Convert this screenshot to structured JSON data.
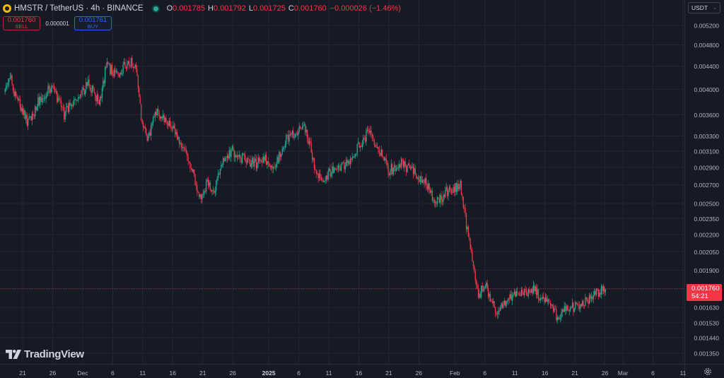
{
  "header": {
    "symbol": "HMSTR / TetherUS · 4h · BINANCE",
    "ohlc": [
      {
        "label": "O",
        "value": "0.001785"
      },
      {
        "label": "H",
        "value": "0.001792"
      },
      {
        "label": "L",
        "value": "0.001725"
      },
      {
        "label": "C",
        "value": "0.001760"
      }
    ],
    "change": "−0.000026 (−1.46%)"
  },
  "trade": {
    "sell_price": "0.001760",
    "sell_label": "SELL",
    "spread": "0.000001",
    "buy_price": "0.001761",
    "buy_label": "BUY"
  },
  "currency": "USDT",
  "price_tag": {
    "price": "0.001760",
    "countdown": "54:21"
  },
  "branding": "TradingView",
  "colors": {
    "up": "#22ab94",
    "down": "#f23645",
    "bg": "#161a25",
    "grid": "#232734",
    "axis_text": "#b2b5be"
  },
  "icons": [
    "tradingview-logo-icon",
    "gear-icon",
    "chevron-down-icon"
  ],
  "chart_data": {
    "type": "candlestick",
    "interval": "4h",
    "y_scale": "log",
    "ylim": [
      0.0013,
      0.0054
    ],
    "y_ticks": [
      "0.005200",
      "0.004800",
      "0.004400",
      "0.004000",
      "0.003600",
      "0.003300",
      "0.003100",
      "0.002900",
      "0.002700",
      "0.002500",
      "0.002350",
      "0.002200",
      "0.002050",
      "0.001900",
      "0.001760",
      "0.001630",
      "0.001530",
      "0.001440",
      "0.001350"
    ],
    "x_ticks": [
      {
        "label": "21",
        "date": "2024-11-21"
      },
      {
        "label": "26",
        "date": "2024-11-26"
      },
      {
        "label": "Dec",
        "date": "2024-12-01"
      },
      {
        "label": "6",
        "date": "2024-12-06"
      },
      {
        "label": "11",
        "date": "2024-12-11"
      },
      {
        "label": "16",
        "date": "2024-12-16"
      },
      {
        "label": "21",
        "date": "2024-12-21"
      },
      {
        "label": "26",
        "date": "2024-12-26"
      },
      {
        "label": "2025",
        "date": "2025-01-01"
      },
      {
        "label": "6",
        "date": "2025-01-06"
      },
      {
        "label": "11",
        "date": "2025-01-11"
      },
      {
        "label": "16",
        "date": "2025-01-16"
      },
      {
        "label": "21",
        "date": "2025-01-21"
      },
      {
        "label": "26",
        "date": "2025-01-26"
      },
      {
        "label": "Feb",
        "date": "2025-02-01"
      },
      {
        "label": "6",
        "date": "2025-02-06"
      },
      {
        "label": "11",
        "date": "2025-02-11"
      },
      {
        "label": "16",
        "date": "2025-02-16"
      },
      {
        "label": "21",
        "date": "2025-02-21"
      },
      {
        "label": "26",
        "date": "2025-02-26"
      },
      {
        "label": "Mar",
        "date": "2025-03-01"
      },
      {
        "label": "6",
        "date": "2025-03-06"
      },
      {
        "label": "11",
        "date": "2025-03-11"
      }
    ],
    "bold_ticks": [
      "2025"
    ],
    "close_path": [
      {
        "date": "2024-11-18",
        "close": 0.00395
      },
      {
        "date": "2024-11-19",
        "close": 0.00425
      },
      {
        "date": "2024-11-20",
        "close": 0.00385
      },
      {
        "date": "2024-11-22",
        "close": 0.00348
      },
      {
        "date": "2024-11-24",
        "close": 0.00385
      },
      {
        "date": "2024-11-26",
        "close": 0.00405
      },
      {
        "date": "2024-11-28",
        "close": 0.0036
      },
      {
        "date": "2024-11-30",
        "close": 0.00385
      },
      {
        "date": "2024-12-02",
        "close": 0.00408
      },
      {
        "date": "2024-12-04",
        "close": 0.0038
      },
      {
        "date": "2024-12-05",
        "close": 0.0044
      },
      {
        "date": "2024-12-07",
        "close": 0.00425
      },
      {
        "date": "2024-12-09",
        "close": 0.0045
      },
      {
        "date": "2024-12-10",
        "close": 0.00435
      },
      {
        "date": "2024-12-11",
        "close": 0.00345
      },
      {
        "date": "2024-12-12",
        "close": 0.00325
      },
      {
        "date": "2024-12-13",
        "close": 0.00365
      },
      {
        "date": "2024-12-15",
        "close": 0.00355
      },
      {
        "date": "2024-12-17",
        "close": 0.0033
      },
      {
        "date": "2024-12-19",
        "close": 0.00295
      },
      {
        "date": "2024-12-20",
        "close": 0.0027
      },
      {
        "date": "2024-12-21",
        "close": 0.00255
      },
      {
        "date": "2024-12-22",
        "close": 0.00275
      },
      {
        "date": "2024-12-23",
        "close": 0.0026
      },
      {
        "date": "2024-12-24",
        "close": 0.0029
      },
      {
        "date": "2024-12-26",
        "close": 0.0031
      },
      {
        "date": "2024-12-28",
        "close": 0.003
      },
      {
        "date": "2024-12-30",
        "close": 0.00295
      },
      {
        "date": "2025-01-01",
        "close": 0.003
      },
      {
        "date": "2025-01-02",
        "close": 0.0029
      },
      {
        "date": "2025-01-04",
        "close": 0.00325
      },
      {
        "date": "2025-01-06",
        "close": 0.00335
      },
      {
        "date": "2025-01-07",
        "close": 0.00345
      },
      {
        "date": "2025-01-08",
        "close": 0.00315
      },
      {
        "date": "2025-01-09",
        "close": 0.0028
      },
      {
        "date": "2025-01-10",
        "close": 0.00275
      },
      {
        "date": "2025-01-12",
        "close": 0.0029
      },
      {
        "date": "2025-01-14",
        "close": 0.00295
      },
      {
        "date": "2025-01-16",
        "close": 0.00315
      },
      {
        "date": "2025-01-18",
        "close": 0.0034
      },
      {
        "date": "2025-01-19",
        "close": 0.00315
      },
      {
        "date": "2025-01-20",
        "close": 0.00305
      },
      {
        "date": "2025-01-21",
        "close": 0.00285
      },
      {
        "date": "2025-01-23",
        "close": 0.00295
      },
      {
        "date": "2025-01-25",
        "close": 0.00285
      },
      {
        "date": "2025-01-27",
        "close": 0.00275
      },
      {
        "date": "2025-01-29",
        "close": 0.0025
      },
      {
        "date": "2025-01-31",
        "close": 0.00265
      },
      {
        "date": "2025-02-02",
        "close": 0.0027
      },
      {
        "date": "2025-02-03",
        "close": 0.0023
      },
      {
        "date": "2025-02-04",
        "close": 0.00195
      },
      {
        "date": "2025-02-05",
        "close": 0.0017
      },
      {
        "date": "2025-02-06",
        "close": 0.0018
      },
      {
        "date": "2025-02-07",
        "close": 0.0017
      },
      {
        "date": "2025-02-08",
        "close": 0.00158
      },
      {
        "date": "2025-02-10",
        "close": 0.0017
      },
      {
        "date": "2025-02-12",
        "close": 0.00172
      },
      {
        "date": "2025-02-14",
        "close": 0.00176
      },
      {
        "date": "2025-02-16",
        "close": 0.00168
      },
      {
        "date": "2025-02-18",
        "close": 0.00158
      },
      {
        "date": "2025-02-20",
        "close": 0.00162
      },
      {
        "date": "2025-02-22",
        "close": 0.00164
      },
      {
        "date": "2025-02-24",
        "close": 0.00172
      },
      {
        "date": "2025-02-26",
        "close": 0.00176
      }
    ],
    "last_price": 0.00176
  }
}
